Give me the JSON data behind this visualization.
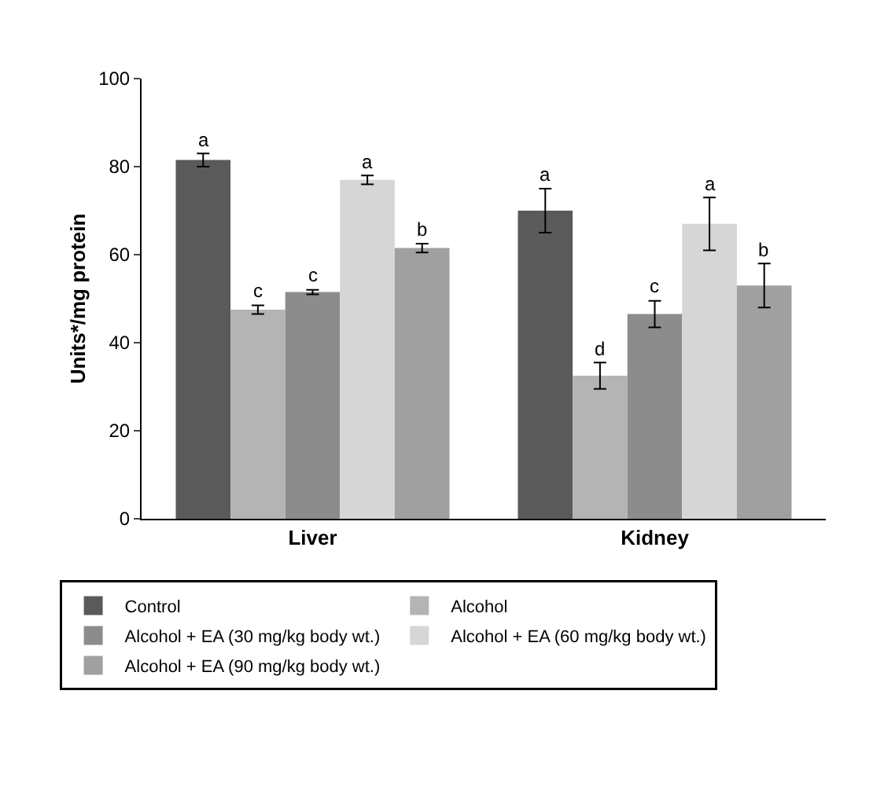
{
  "chart_data": {
    "type": "bar",
    "ylabel": "Units*/mg protein",
    "categories": [
      "Liver",
      "Kidney"
    ],
    "series": [
      {
        "name": "Control",
        "color": "#5a5a5a",
        "values": [
          81.5,
          70
        ],
        "errors": [
          1.5,
          5
        ],
        "value_labels": [
          "a",
          "a"
        ]
      },
      {
        "name": "Alcohol",
        "color": "#b4b4b4",
        "values": [
          47.5,
          32.5
        ],
        "errors": [
          1,
          3
        ],
        "value_labels": [
          "c",
          "d"
        ]
      },
      {
        "name": "Alcohol + EA (30 mg/kg body wt.)",
        "color": "#8c8c8c",
        "values": [
          51.5,
          46.5
        ],
        "errors": [
          0.5,
          3
        ],
        "value_labels": [
          "c",
          "c"
        ]
      },
      {
        "name": "Alcohol + EA (60 mg/kg body wt.)",
        "color": "#d6d6d6",
        "values": [
          77,
          67
        ],
        "errors": [
          1,
          6
        ],
        "value_labels": [
          "a",
          "a"
        ]
      },
      {
        "name": "Alcohol + EA (90 mg/kg body wt.)",
        "color": "#a0a0a0",
        "values": [
          61.5,
          53
        ],
        "errors": [
          1,
          5
        ],
        "value_labels": [
          "b",
          "b"
        ]
      }
    ],
    "ylim": [
      0,
      100
    ],
    "yticks": [
      0,
      20,
      40,
      60,
      80,
      100
    ],
    "grid": false,
    "legend": "bottom"
  }
}
